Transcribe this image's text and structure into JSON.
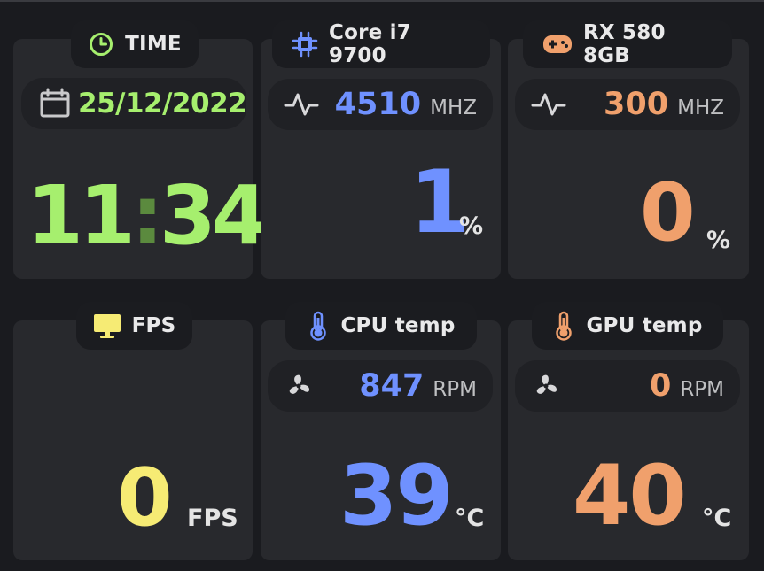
{
  "colors": {
    "time": "#a6ef6e",
    "cpu": "#6f91ff",
    "gpu": "#f0a06c",
    "fps": "#f6eb74",
    "text": "#e9e9ea"
  },
  "time_card": {
    "title": "TIME",
    "date": "25/12/2022",
    "hours": "11",
    "separator": ":",
    "minutes": "34",
    "icons": {
      "title": "clock-icon",
      "date": "calendar-icon"
    }
  },
  "cpu_card": {
    "title": "Core i7 9700",
    "clock_value": "4510",
    "clock_unit": "MHZ",
    "load_value": "1",
    "load_unit": "%",
    "icons": {
      "title": "chip-icon",
      "clock": "pulse-icon"
    }
  },
  "gpu_card": {
    "title": "RX 580 8GB",
    "clock_value": "300",
    "clock_unit": "MHZ",
    "load_value": "0",
    "load_unit": "%",
    "icons": {
      "title": "gamepad-icon",
      "clock": "pulse-icon"
    }
  },
  "fps_card": {
    "title": "FPS",
    "value": "0",
    "unit": "FPS",
    "icons": {
      "title": "monitor-icon"
    }
  },
  "cpu_temp_card": {
    "title": "CPU temp",
    "fan_value": "847",
    "fan_unit": "RPM",
    "temp_value": "39",
    "temp_unit": "°C",
    "icons": {
      "title": "thermometer-icon",
      "fan": "fan-icon"
    }
  },
  "gpu_temp_card": {
    "title": "GPU temp",
    "fan_value": "0",
    "fan_unit": "RPM",
    "temp_value": "40",
    "temp_unit": "°C",
    "icons": {
      "title": "thermometer-icon",
      "fan": "fan-icon"
    }
  }
}
